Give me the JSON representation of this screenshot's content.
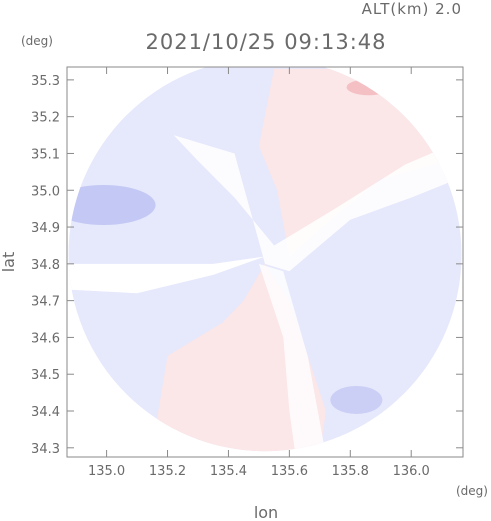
{
  "chart_data": {
    "type": "heatmap",
    "title": "2021/10/25 09:13:48",
    "subtitle": "ALT(km) 2.0",
    "xlabel": "lon",
    "ylabel": "lat",
    "x_unit": "(deg)",
    "y_unit": "(deg)",
    "xlim": [
      134.87,
      136.17
    ],
    "ylim": [
      34.275,
      35.335
    ],
    "x_ticks": [
      135.0,
      135.2,
      135.4,
      135.6,
      135.8,
      136.0
    ],
    "x_tick_labels": [
      "135.0",
      "135.2",
      "135.4",
      "135.6",
      "135.8",
      "136.0"
    ],
    "y_ticks": [
      34.3,
      34.4,
      34.5,
      34.6,
      34.7,
      34.8,
      34.9,
      35.0,
      35.1,
      35.2,
      35.3
    ],
    "y_tick_labels": [
      "34.3",
      "34.4",
      "34.5",
      "34.6",
      "34.7",
      "34.8",
      "34.9",
      "35.0",
      "35.1",
      "35.2",
      "35.3"
    ],
    "radar_center": {
      "lon": 135.52,
      "lat": 34.825
    },
    "radar_radius_lon": 0.645,
    "colors": {
      "approaching": "#e6e8fb",
      "approaching_strong": "#9aa1ea",
      "receding": "#fbe6e8",
      "receding_strong": "#f0a6ac",
      "no_data": "#ffffff",
      "axes": "#8a8a8a",
      "text": "#6a6a6a"
    },
    "grid": false,
    "legend": "none"
  }
}
